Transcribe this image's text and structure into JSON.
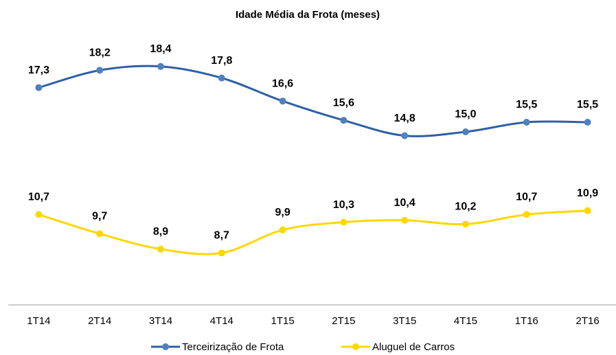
{
  "chart_data": {
    "type": "line",
    "title": "Idade Média da Frota (meses)",
    "categories": [
      "1T14",
      "2T14",
      "3T14",
      "4T14",
      "1T15",
      "2T15",
      "3T15",
      "4T15",
      "1T16",
      "2T16"
    ],
    "series": [
      {
        "name": "Terceirização de Frota",
        "color": "#2e5fa3",
        "marker_color": "#4f81bd",
        "values": [
          17.3,
          18.2,
          18.4,
          17.8,
          16.6,
          15.6,
          14.8,
          15.0,
          15.5,
          15.5
        ],
        "value_labels": [
          "17,3",
          "18,2",
          "18,4",
          "17,8",
          "16,6",
          "15,6",
          "14,8",
          "15,0",
          "15,5",
          "15,5"
        ]
      },
      {
        "name": "Aluguel de Carros",
        "color": "#ffd700",
        "marker_color": "#ffd700",
        "values": [
          10.7,
          9.7,
          8.9,
          8.7,
          9.9,
          10.3,
          10.4,
          10.2,
          10.7,
          10.9
        ],
        "value_labels": [
          "10,7",
          "9,7",
          "8,9",
          "8,7",
          "9,9",
          "10,3",
          "10,4",
          "10,2",
          "10,7",
          "10,9"
        ]
      }
    ],
    "ylim": [
      6,
      20
    ],
    "legend": "bottom"
  }
}
